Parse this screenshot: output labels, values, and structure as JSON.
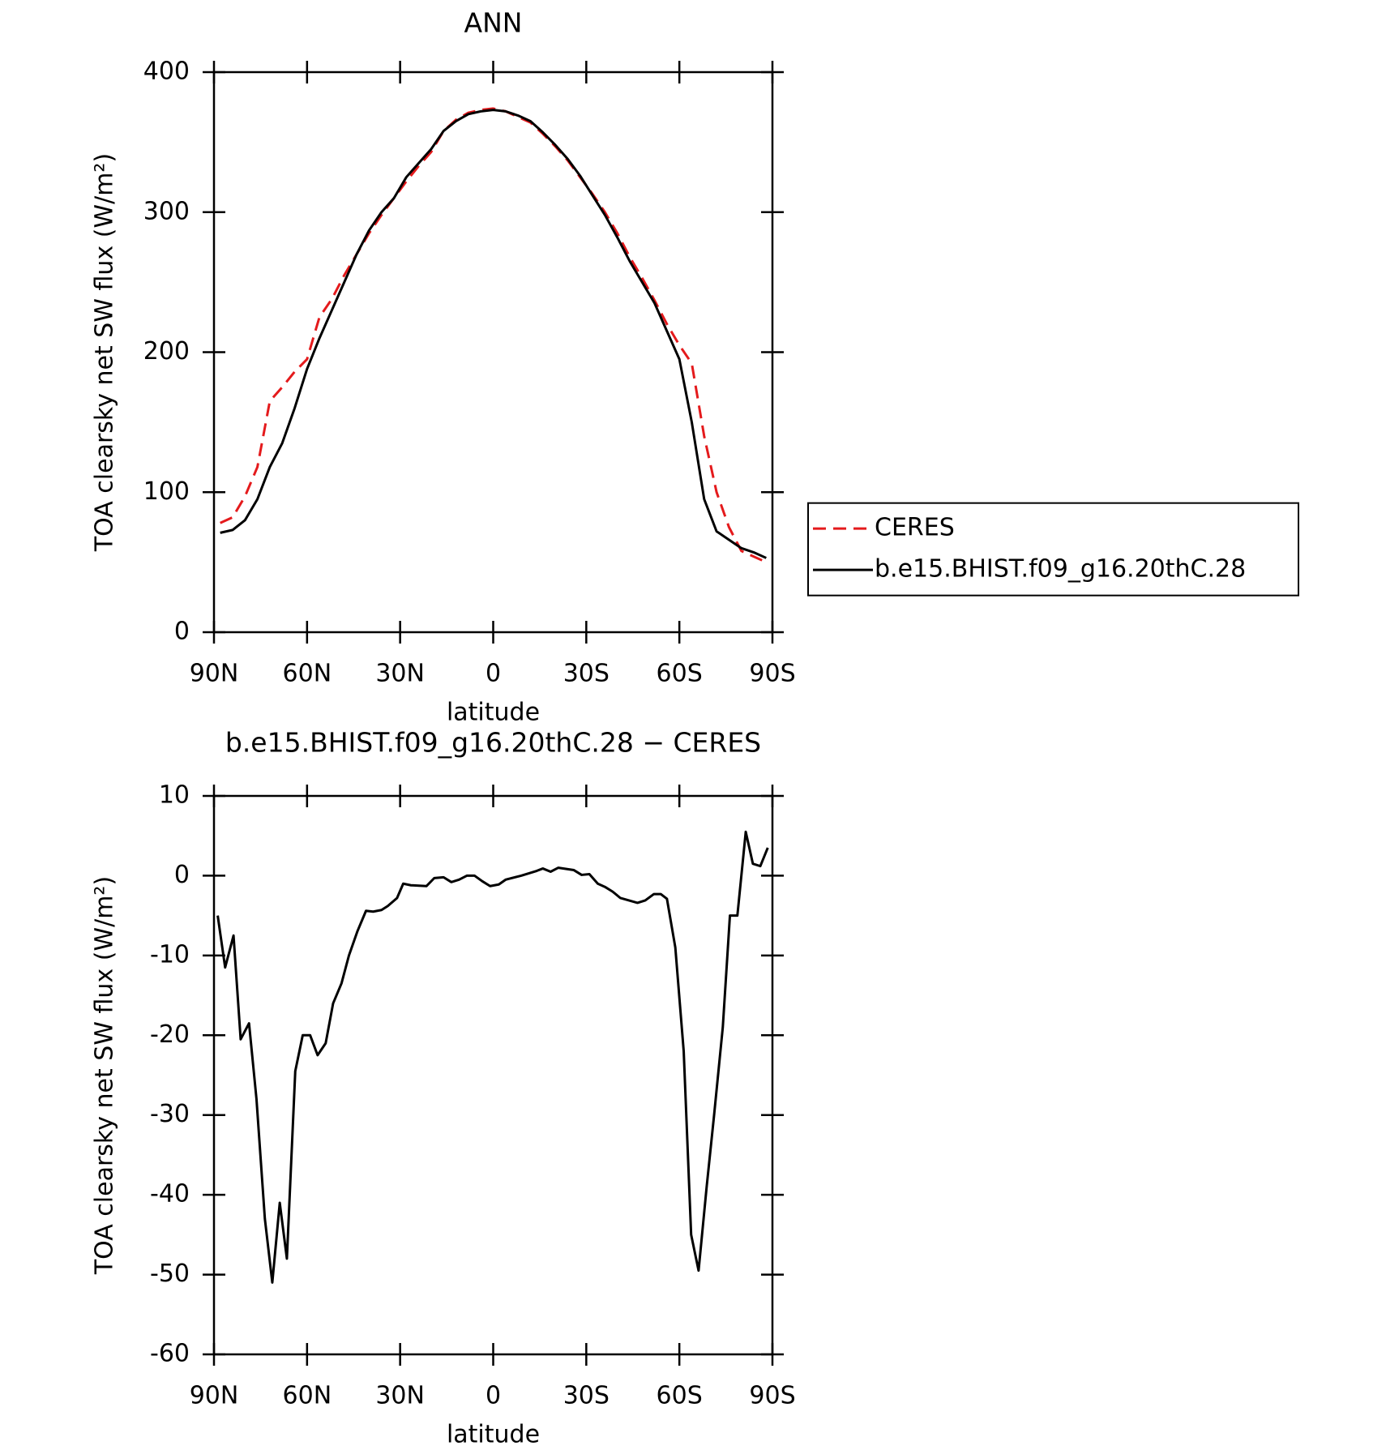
{
  "chart_data": [
    {
      "type": "line",
      "title": "ANN",
      "xlabel": "latitude",
      "ylabel": "TOA clearsky net SW flux (W/m²)",
      "x": [
        88,
        84,
        80,
        76,
        72,
        68,
        64,
        60,
        56,
        52,
        48,
        44,
        40,
        36,
        32,
        28,
        24,
        20,
        16,
        12,
        8,
        4,
        0,
        -4,
        -8,
        -12,
        -16,
        -20,
        -24,
        -28,
        -32,
        -36,
        -40,
        -44,
        -48,
        -52,
        -56,
        -60,
        -64,
        -68,
        -72,
        -76,
        -80,
        -84,
        -88
      ],
      "series": [
        {
          "name": "CERES",
          "color": "#e41a1c",
          "linestyle": "dashed",
          "values": [
            78,
            82,
            97,
            118,
            165,
            175,
            186,
            195,
            225,
            238,
            255,
            270,
            285,
            298,
            310,
            322,
            333,
            343,
            358,
            366,
            371,
            373,
            374,
            372,
            368,
            364,
            356,
            347,
            337,
            325,
            313,
            300,
            285,
            268,
            253,
            237,
            220,
            205,
            192,
            140,
            100,
            75,
            58,
            54,
            50
          ]
        },
        {
          "name": "b.e15.BHIST.f09_g16.20thC.28",
          "color": "#000000",
          "linestyle": "solid",
          "values": [
            71,
            73,
            80,
            95,
            118,
            135,
            160,
            188,
            210,
            230,
            250,
            270,
            287,
            300,
            310,
            325,
            335,
            345,
            358,
            365,
            370,
            372,
            373,
            372,
            369,
            365,
            357,
            348,
            338,
            326,
            312,
            298,
            282,
            265,
            250,
            235,
            215,
            195,
            150,
            95,
            72,
            66,
            60,
            57,
            53
          ]
        }
      ],
      "xlim": [
        90,
        -90
      ],
      "xticks": [
        {
          "value": 90,
          "label": "90N"
        },
        {
          "value": 60,
          "label": "60N"
        },
        {
          "value": 30,
          "label": "30N"
        },
        0,
        {
          "value": -30,
          "label": "30S"
        },
        {
          "value": -60,
          "label": "60S"
        },
        {
          "value": -90,
          "label": "90S"
        }
      ],
      "ylim": [
        0,
        400
      ],
      "yticks": [
        0,
        100,
        200,
        300,
        400
      ],
      "legend": "right"
    },
    {
      "type": "line",
      "title": "b.e15.BHIST.f09_g16.20thC.28 − CERES",
      "xlabel": "latitude",
      "ylabel": "TOA clearsky net SW flux (W/m²)",
      "x": [
        88.8,
        86.4,
        83.7,
        81.4,
        78.7,
        76.3,
        73.6,
        71.2,
        68.8,
        66.5,
        63.8,
        61.4,
        59,
        56.6,
        54,
        51.6,
        48.9,
        46.5,
        43.8,
        41,
        38.7,
        36,
        34,
        31,
        29,
        26.5,
        21.5,
        19,
        16,
        13.5,
        11,
        8.5,
        6,
        3.5,
        1,
        -1.8,
        -4,
        -9,
        -14,
        -16,
        -18.5,
        -21,
        -26,
        -28.5,
        -31,
        -33.7,
        -36,
        -38.5,
        -41,
        -46.5,
        -49,
        -51.8,
        -54,
        -56,
        -58.7,
        -61.4,
        -63.8,
        -66.2,
        -68.8,
        -71.2,
        -74,
        -76.3,
        -78.7,
        -81.4,
        -83.7,
        -86.1,
        -88.5
      ],
      "values": [
        -5,
        -11.5,
        -7.5,
        -20.5,
        -18.5,
        -28,
        -43,
        -51,
        -41,
        -48,
        -24.5,
        -20,
        -20,
        -22.5,
        -21,
        -16,
        -13.5,
        -10,
        -7,
        -4.4,
        -4.5,
        -4.3,
        -3.8,
        -2.8,
        -1,
        -1.2,
        -1.3,
        -0.3,
        -0.2,
        -0.8,
        -0.5,
        0,
        0,
        -0.7,
        -1.3,
        -1.1,
        -0.5,
        0,
        0.6,
        0.9,
        0.5,
        1,
        0.7,
        0.1,
        0.2,
        -1,
        -1.4,
        -2,
        -2.8,
        -3.4,
        -3.1,
        -2.3,
        -2.3,
        -2.9,
        -9,
        -22,
        -45,
        -49.5,
        -39,
        -30,
        -19,
        -5,
        -5,
        5.5,
        1.5,
        1.2,
        3.5
      ],
      "color": "#000000",
      "xlim": [
        90,
        -90
      ],
      "xticks": [
        {
          "value": 90,
          "label": "90N"
        },
        {
          "value": 60,
          "label": "60N"
        },
        {
          "value": 30,
          "label": "30N"
        },
        0,
        {
          "value": -30,
          "label": "30S"
        },
        {
          "value": -60,
          "label": "60S"
        },
        {
          "value": -90,
          "label": "90S"
        }
      ],
      "ylim": [
        -60,
        10
      ],
      "yticks": [
        -60,
        -50,
        -40,
        -30,
        -20,
        -10,
        0,
        10
      ]
    }
  ]
}
